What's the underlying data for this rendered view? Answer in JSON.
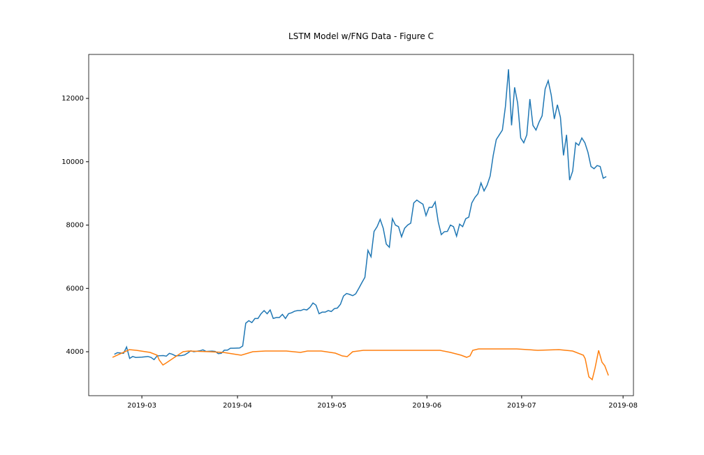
{
  "chart_data": {
    "type": "line",
    "title": "LSTM Model w/FNG Data - Figure C",
    "xlim": [
      -17.4,
      160.9
    ],
    "ylim": [
      2612,
      13389
    ],
    "xticks": [
      {
        "value": 0,
        "label": "2019-03"
      },
      {
        "value": 31.3,
        "label": "2019-04"
      },
      {
        "value": 62.2,
        "label": "2019-05"
      },
      {
        "value": 93.3,
        "label": "2019-06"
      },
      {
        "value": 124.3,
        "label": "2019-07"
      },
      {
        "value": 157.5,
        "label": "2019-08"
      }
    ],
    "yticks": [
      4000,
      6000,
      8000,
      10000,
      12000
    ],
    "grid": false,
    "series": [
      {
        "color": "#1f77b4",
        "x": [
          -9,
          -8,
          -6,
          -5,
          -4,
          -3,
          -2,
          0,
          2,
          3,
          4,
          5,
          7,
          8,
          9,
          10,
          11,
          13,
          14,
          15,
          16,
          17,
          19,
          20,
          21,
          23,
          24,
          25,
          26,
          27,
          28,
          29,
          30,
          32,
          33,
          34,
          35,
          36,
          37,
          38,
          39,
          40,
          41,
          42,
          43,
          44,
          45,
          46,
          47,
          48,
          49,
          50,
          51,
          52,
          53,
          54,
          55,
          56,
          57,
          58,
          59,
          60,
          61,
          62,
          63,
          64,
          65,
          66,
          67,
          68,
          69,
          70,
          71,
          72,
          73,
          74,
          75,
          76,
          77,
          78,
          79,
          80,
          81,
          82,
          83,
          84,
          85,
          86,
          87,
          88,
          89,
          90,
          91,
          92,
          93,
          94,
          95,
          96,
          97,
          98,
          99,
          100,
          101,
          102,
          103,
          104,
          105,
          106,
          107,
          108,
          109,
          110,
          111,
          112,
          113,
          114,
          115,
          116,
          117,
          118,
          119,
          120,
          121,
          122,
          123,
          124,
          125,
          126,
          127,
          128,
          129,
          130,
          131,
          132,
          133,
          134,
          135,
          136,
          137,
          138,
          139,
          140,
          141,
          142,
          143,
          144,
          145,
          146,
          147,
          148,
          149,
          150,
          151,
          152
        ],
        "values": [
          3920,
          3970,
          3950,
          4150,
          3790,
          3850,
          3820,
          3830,
          3850,
          3820,
          3750,
          3870,
          3880,
          3860,
          3950,
          3920,
          3870,
          3880,
          3900,
          3960,
          4030,
          4000,
          4030,
          4060,
          4010,
          4020,
          4010,
          3940,
          3950,
          4050,
          4050,
          4110,
          4110,
          4120,
          4180,
          4900,
          4980,
          4920,
          5050,
          5050,
          5200,
          5300,
          5200,
          5320,
          5050,
          5080,
          5080,
          5180,
          5050,
          5200,
          5230,
          5280,
          5300,
          5300,
          5340,
          5320,
          5400,
          5540,
          5470,
          5200,
          5250,
          5250,
          5300,
          5270,
          5360,
          5380,
          5500,
          5760,
          5840,
          5810,
          5770,
          5830,
          6000,
          6180,
          6350,
          7200,
          7000,
          7800,
          7950,
          8180,
          7900,
          7400,
          7300,
          8200,
          8000,
          7950,
          7630,
          7900,
          8000,
          8060,
          8700,
          8790,
          8720,
          8660,
          8300,
          8560,
          8560,
          8730,
          8100,
          7700,
          7790,
          7800,
          8000,
          7950,
          7650,
          8030,
          7950,
          8200,
          8250,
          8700,
          8870,
          8990,
          9330,
          9080,
          9260,
          9550,
          10200,
          10700,
          10850,
          11000,
          11750,
          12920,
          11150,
          12350,
          11850,
          10750,
          10600,
          10850,
          11980,
          11150,
          11000,
          11250,
          11450,
          12300,
          12560,
          12100,
          11350,
          11800,
          11400,
          10200,
          10850,
          9420,
          9700,
          10600,
          10520,
          10750,
          10600,
          10300,
          9850,
          9780,
          9880,
          9850,
          9480,
          9530
        ]
      },
      {
        "color": "#ff7f0e",
        "x": [
          -9.6,
          -4.1,
          -1.8,
          2.7,
          5.0,
          5.7,
          6.9,
          8.0,
          10.7,
          13.5,
          15.3,
          22.2,
          26.7,
          32.5,
          36.3,
          40.4,
          47.3,
          51.9,
          54.2,
          58.7,
          63.3,
          65.6,
          67.2,
          69.0,
          72.5,
          81.6,
          88.5,
          97.6,
          101.0,
          104.5,
          106.3,
          107.4,
          108.3,
          110.2,
          113.6,
          122.7,
          129.6,
          136.5,
          141.0,
          144.5,
          145.1,
          146.3,
          147.4,
          148.3,
          149.5,
          150.6,
          151.5,
          152.7
        ],
        "values": [
          3824,
          4066,
          4044,
          3978,
          3890,
          3736,
          3581,
          3647,
          3824,
          4000,
          4022,
          4000,
          3978,
          3890,
          4000,
          4022,
          4022,
          3978,
          4022,
          4022,
          3956,
          3868,
          3846,
          4000,
          4044,
          4044,
          4044,
          4044,
          3978,
          3890,
          3824,
          3868,
          4044,
          4088,
          4088,
          4088,
          4044,
          4066,
          4022,
          3890,
          3780,
          3207,
          3118,
          3471,
          4044,
          3669,
          3559,
          3251
        ]
      }
    ]
  }
}
